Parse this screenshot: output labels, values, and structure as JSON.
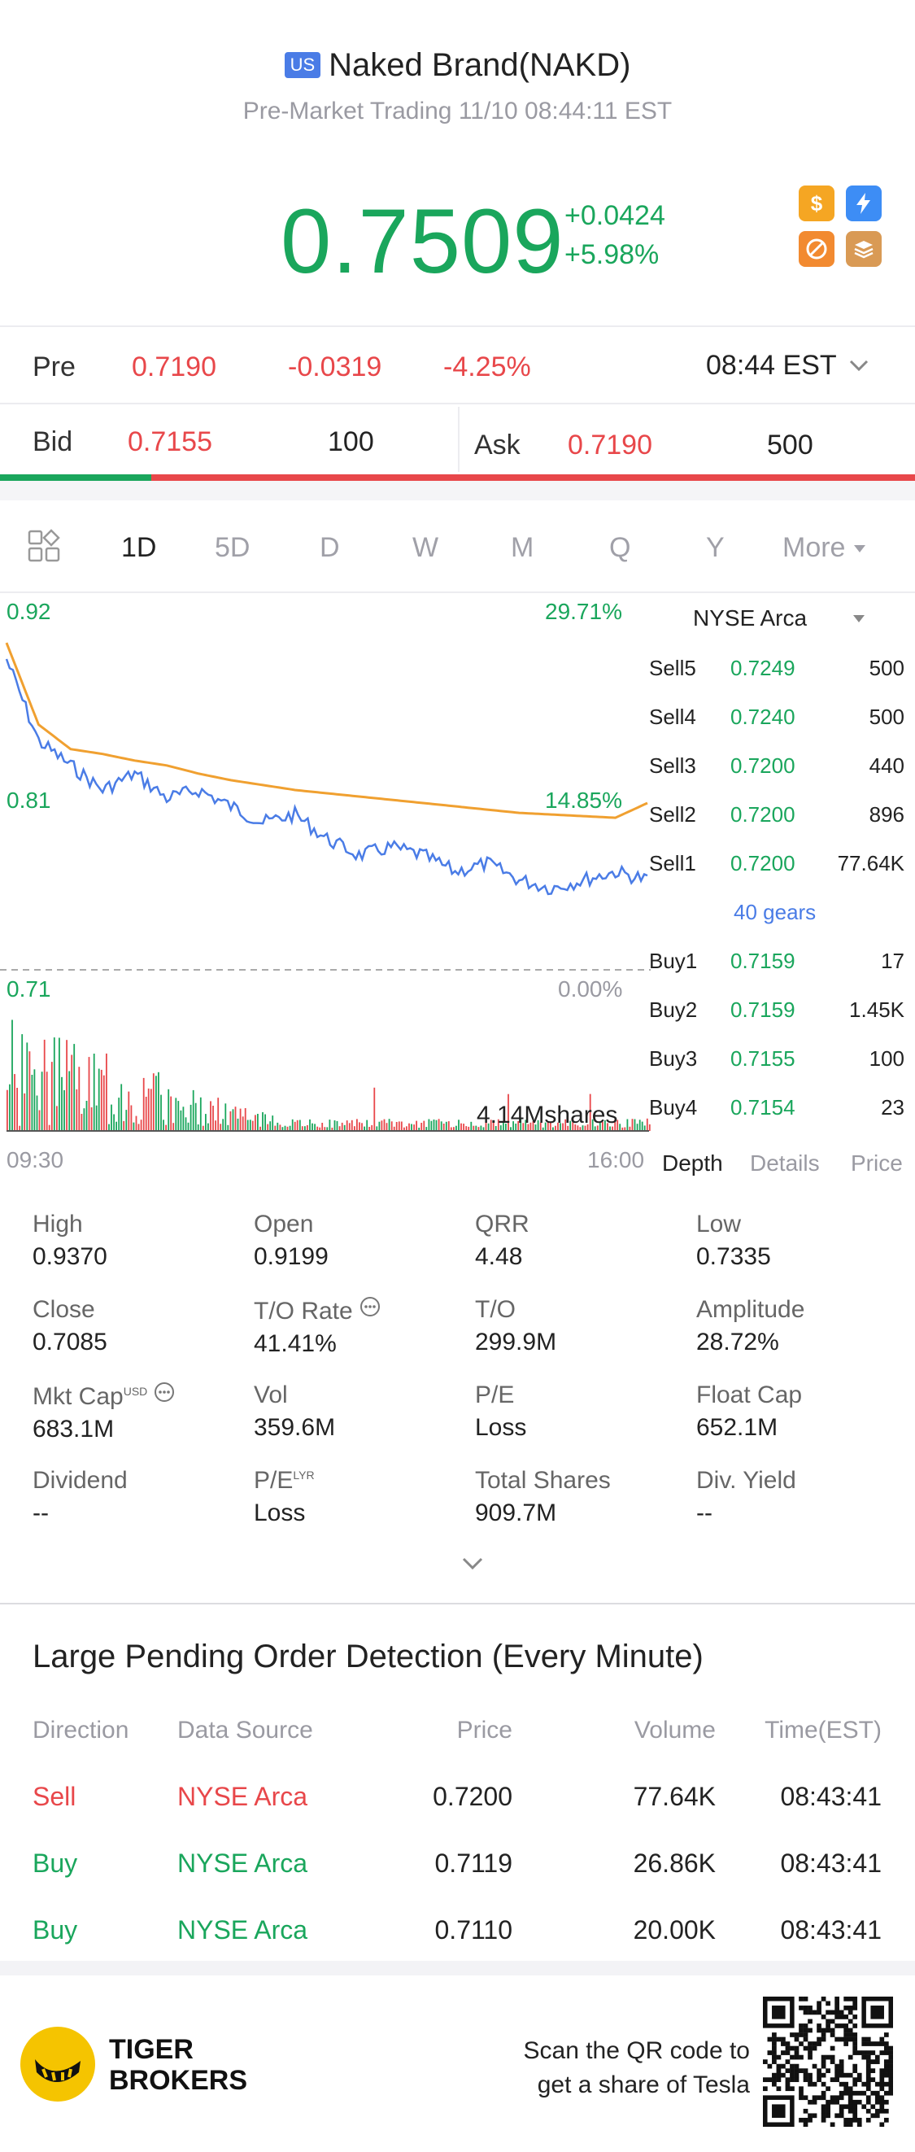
{
  "header": {
    "badge": "US",
    "title": "Naked Brand(NAKD)",
    "subtitle": "Pre-Market Trading 11/10 08:44:11 EST"
  },
  "quote": {
    "price": "0.7509",
    "change": "+0.0424",
    "change_pct": "+5.98%"
  },
  "pre_row": {
    "label": "Pre",
    "price": "0.7190",
    "change": "-0.0319",
    "change_pct": "-4.25%",
    "time": "08:44 EST"
  },
  "bid_ask": {
    "bid_label": "Bid",
    "bid_price": "0.7155",
    "bid_size": "100",
    "ask_label": "Ask",
    "ask_price": "0.7190",
    "ask_size": "500",
    "bid_fraction": 0.165
  },
  "period_tabs": [
    "1D",
    "5D",
    "D",
    "W",
    "M",
    "Q",
    "Y"
  ],
  "more_tab": "More",
  "chart": {
    "y_high": "0.92",
    "y_high_pct": "29.71%",
    "y_mid": "0.81",
    "y_mid_pct": "14.85%",
    "y_low": "0.71",
    "y_low_pct": "0.00%",
    "volume_label": "4.14Mshares",
    "time_start": "09:30",
    "time_end": "16:00"
  },
  "chart_data": {
    "type": "line",
    "x_range": [
      "09:30",
      "16:00"
    ],
    "ylim": [
      0.71,
      0.92
    ],
    "series": [
      {
        "values": [
          0.9,
          0.85,
          0.835,
          0.82,
          0.83,
          0.815,
          0.82,
          0.81,
          0.8,
          0.805,
          0.79,
          0.78,
          0.785,
          0.78,
          0.77,
          0.775,
          0.765,
          0.76,
          0.765,
          0.77,
          0.765
        ]
      },
      {
        "values": [
          0.91,
          0.86,
          0.845,
          0.842,
          0.838,
          0.835,
          0.83,
          0.826,
          0.823,
          0.82,
          0.818,
          0.816,
          0.814,
          0.812,
          0.81,
          0.808,
          0.806,
          0.805,
          0.804,
          0.803,
          0.812
        ]
      }
    ]
  },
  "orderbook": {
    "exchange": "NYSE Arca",
    "sells": [
      {
        "label": "Sell5",
        "price": "0.7249",
        "vol": "500"
      },
      {
        "label": "Sell4",
        "price": "0.7240",
        "vol": "500"
      },
      {
        "label": "Sell3",
        "price": "0.7200",
        "vol": "440"
      },
      {
        "label": "Sell2",
        "price": "0.7200",
        "vol": "896"
      },
      {
        "label": "Sell1",
        "price": "0.7200",
        "vol": "77.64K"
      }
    ],
    "gears": "40 gears",
    "buys": [
      {
        "label": "Buy1",
        "price": "0.7159",
        "vol": "17"
      },
      {
        "label": "Buy2",
        "price": "0.7159",
        "vol": "1.45K"
      },
      {
        "label": "Buy3",
        "price": "0.7155",
        "vol": "100"
      },
      {
        "label": "Buy4",
        "price": "0.7154",
        "vol": "23"
      }
    ],
    "tabs": [
      "Depth",
      "Details",
      "Price"
    ]
  },
  "stats": [
    {
      "label": "High",
      "value": "0.9370"
    },
    {
      "label": "Open",
      "value": "0.9199"
    },
    {
      "label": "QRR",
      "value": "4.48"
    },
    {
      "label": "Low",
      "value": "0.7335"
    },
    {
      "label": "Close",
      "value": "0.7085"
    },
    {
      "label": "T/O Rate",
      "value": "41.41%"
    },
    {
      "label": "T/O",
      "value": "299.9M"
    },
    {
      "label": "Amplitude",
      "value": "28.72%"
    },
    {
      "label": "Mkt Cap",
      "value": "683.1M",
      "sup": "USD"
    },
    {
      "label": "Vol",
      "value": "359.6M"
    },
    {
      "label": "P/E",
      "value": "Loss"
    },
    {
      "label": "Float Cap",
      "value": "652.1M"
    },
    {
      "label": "Dividend",
      "value": "--"
    },
    {
      "label": "P/E",
      "value": "Loss",
      "sup": "LYR"
    },
    {
      "label": "Total Shares",
      "value": "909.7M"
    },
    {
      "label": "Div. Yield",
      "value": "--"
    }
  ],
  "pending": {
    "title": "Large Pending Order Detection (Every Minute)",
    "headers": [
      "Direction",
      "Data Source",
      "Price",
      "Volume",
      "Time(EST)"
    ],
    "rows": [
      {
        "dir": "Sell",
        "src": "NYSE Arca",
        "price": "0.7200",
        "vol": "77.64K",
        "time": "08:43:41"
      },
      {
        "dir": "Buy",
        "src": "NYSE Arca",
        "price": "0.7119",
        "vol": "26.86K",
        "time": "08:43:41"
      },
      {
        "dir": "Buy",
        "src": "NYSE Arca",
        "price": "0.7110",
        "vol": "20.00K",
        "time": "08:43:41"
      }
    ]
  },
  "footer": {
    "brand_line1": "TIGER",
    "brand_line2": "BROKERS",
    "qr_line1": "Scan the QR code to",
    "qr_line2": "get a share of Tesla"
  },
  "colors": {
    "green": "#1aa65c",
    "red": "#e8474a",
    "blue_line": "#4a7ce6",
    "avg_line": "#f0a030",
    "badge": "#4a7ce6"
  }
}
